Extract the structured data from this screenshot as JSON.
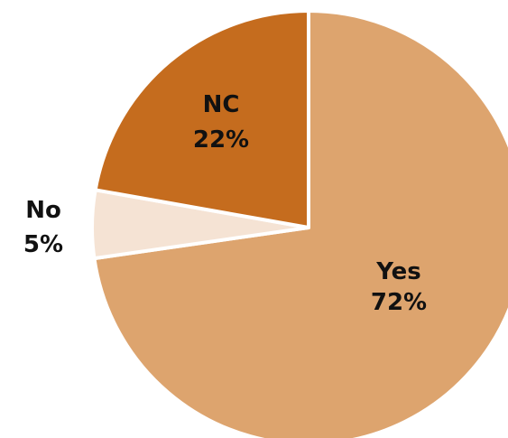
{
  "chart_data": {
    "type": "pie",
    "slices": [
      {
        "label": "Yes",
        "value": 72,
        "display": "72%",
        "color": "#DDA46E"
      },
      {
        "label": "No",
        "value": 5,
        "display": "5%",
        "color": "#F5E3D4"
      },
      {
        "label": "NC",
        "value": 22,
        "display": "22%",
        "color": "#C56C1E"
      }
    ]
  }
}
